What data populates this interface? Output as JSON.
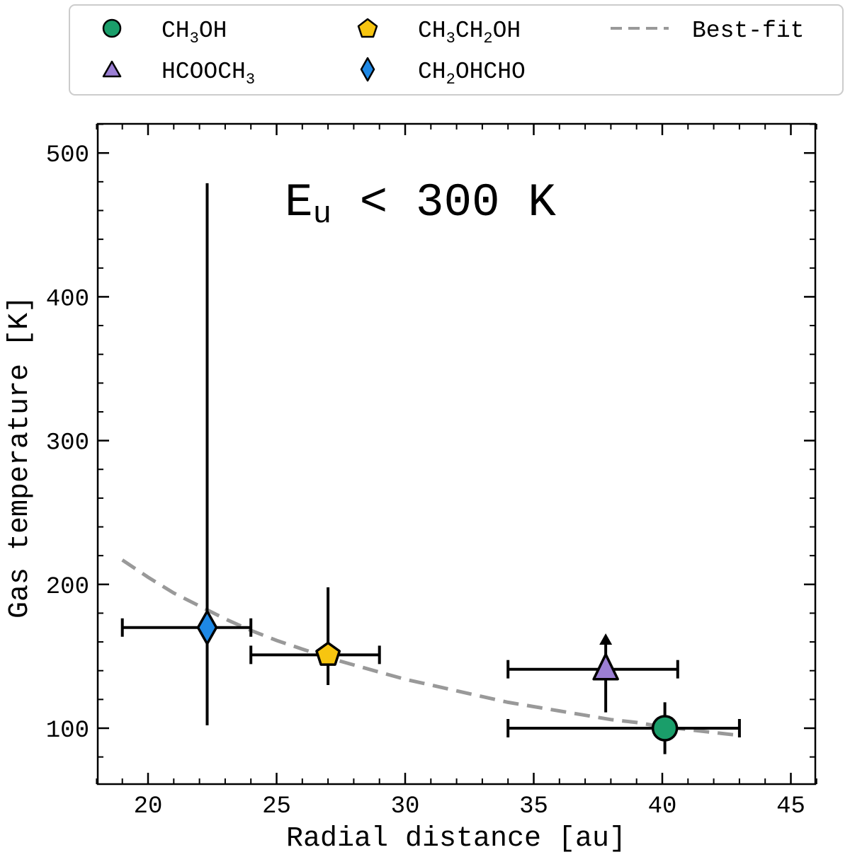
{
  "chart_data": {
    "type": "scatter",
    "xlabel": "Radial distance [au]",
    "ylabel": "Gas temperature [K]",
    "xlim": [
      18,
      46.5
    ],
    "ylim": [
      60,
      520
    ],
    "x_ticks": [
      20,
      25,
      30,
      35,
      40,
      45
    ],
    "y_ticks": [
      100,
      200,
      300,
      400,
      500
    ],
    "x_tick_labels": [
      "20",
      "25",
      "30",
      "35",
      "40",
      "45"
    ],
    "y_tick_labels": [
      "100",
      "200",
      "300",
      "400",
      "500"
    ],
    "grid": false,
    "legend_position": "top, above plot",
    "annotation": {
      "main": "E",
      "sub": "u",
      "rest": " < 300 K"
    },
    "series": [
      {
        "name": "CH3OH",
        "name_parts": {
          "a": "CH",
          "sub1": "3",
          "b": "OH",
          "sub2": "",
          "c": ""
        },
        "marker": "circle",
        "color": "#1a9e6a",
        "x": 40.1,
        "y": 100,
        "xerr": [
          34,
          43
        ],
        "yerr": [
          82,
          118
        ],
        "lower_limit": false
      },
      {
        "name": "HCOOCH3",
        "name_parts": {
          "a": "HCOOCH",
          "sub1": "3",
          "b": "",
          "sub2": "",
          "c": ""
        },
        "marker": "triangle",
        "color": "#9b7fd4",
        "x": 37.8,
        "y": 141,
        "xerr": [
          34,
          40.6
        ],
        "yerr": [
          111,
          162
        ],
        "lower_limit": true
      },
      {
        "name": "CH3CH2OH",
        "name_parts": {
          "a": "CH",
          "sub1": "3",
          "b": "CH",
          "sub2": "2",
          "c": "OH"
        },
        "marker": "pentagon",
        "color": "#f7c510",
        "x": 27,
        "y": 151,
        "xerr": [
          24,
          29
        ],
        "yerr": [
          130,
          198
        ],
        "lower_limit": false
      },
      {
        "name": "CH2OHCHO",
        "name_parts": {
          "a": "CH",
          "sub1": "2",
          "b": "OHCHO",
          "sub2": "",
          "c": ""
        },
        "marker": "diamond",
        "color": "#1e88e5",
        "x": 22.3,
        "y": 170,
        "xerr": [
          19,
          24
        ],
        "yerr": [
          102,
          479
        ],
        "lower_limit": false
      }
    ],
    "best_fit": {
      "name": "Best-fit",
      "style": "dashed",
      "color": "#999999",
      "x": [
        19,
        20,
        21,
        22,
        23,
        24,
        25,
        26,
        27,
        28,
        29,
        30,
        31,
        32,
        33,
        34,
        35,
        36,
        37,
        38,
        39,
        40,
        41,
        42,
        43
      ],
      "y": [
        217,
        205,
        194,
        185,
        176,
        168,
        161,
        155,
        149,
        144,
        139,
        134,
        130,
        126,
        122,
        118,
        115,
        112,
        109,
        106,
        104,
        101,
        99,
        97,
        95
      ]
    }
  }
}
